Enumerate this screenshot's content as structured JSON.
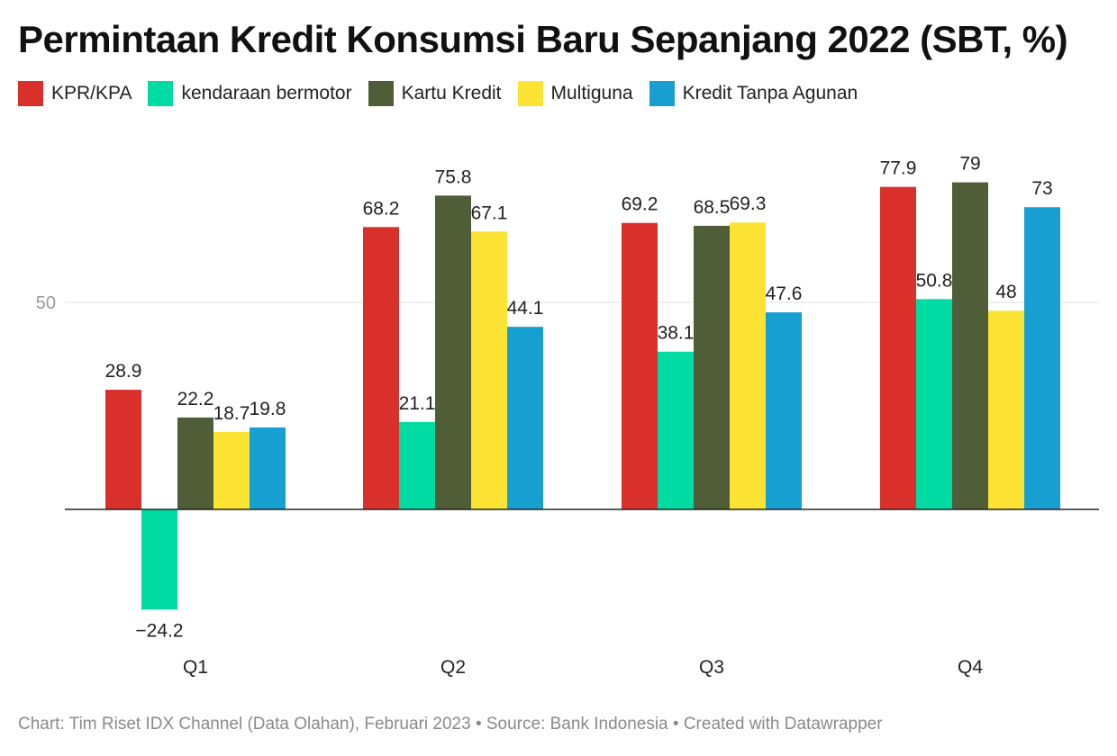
{
  "title": "Permintaan Kredit Konsumsi Baru Sepanjang 2022 (SBT, %)",
  "footer": "Chart: Tim Riset IDX Channel (Data Olahan), Februari 2023 • Source: Bank Indonesia • Created with Datawrapper",
  "chart_data": {
    "type": "bar",
    "title": "Permintaan Kredit Konsumsi Baru Sepanjang 2022 (SBT, %)",
    "categories": [
      "Q1",
      "Q2",
      "Q3",
      "Q4"
    ],
    "series": [
      {
        "name": "KPR/KPA",
        "color": "#d9302b",
        "values": [
          28.9,
          68.2,
          69.2,
          77.9
        ],
        "labels": [
          "28.9",
          "68.2",
          "69.2",
          "77.9"
        ]
      },
      {
        "name": "kendaraan bermotor",
        "color": "#00dba4",
        "values": [
          -24.2,
          21.1,
          38.1,
          50.8
        ],
        "labels": [
          "−24.2",
          "21.1",
          "38.1",
          "50.8"
        ]
      },
      {
        "name": "Kartu Kredit",
        "color": "#4f5e36",
        "values": [
          22.2,
          75.8,
          68.5,
          79
        ],
        "labels": [
          "22.2",
          "75.8",
          "68.5",
          "79"
        ]
      },
      {
        "name": "Multiguna",
        "color": "#fde333",
        "values": [
          18.7,
          67.1,
          69.3,
          48
        ],
        "labels": [
          "18.7",
          "67.1",
          "69.3",
          "48"
        ]
      },
      {
        "name": "Kredit Tanpa Agunan",
        "color": "#189fd1",
        "values": [
          19.8,
          44.1,
          47.6,
          73
        ],
        "labels": [
          "19.8",
          "44.1",
          "47.6",
          "73"
        ]
      }
    ],
    "y_ticks": [
      50
    ],
    "y_tick_labels": [
      "50"
    ],
    "ylim": [
      -35,
      90
    ],
    "grid": true,
    "legend_position": "top-left"
  }
}
